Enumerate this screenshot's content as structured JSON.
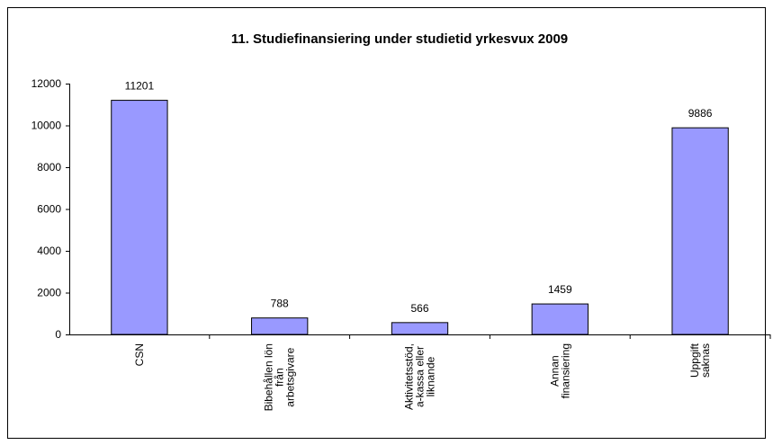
{
  "chart_data": {
    "type": "bar",
    "title": "11. Studiefinansiering under studietid yrkesvux 2009",
    "categories": [
      [
        "CSN"
      ],
      [
        "Bibehållen lön",
        "från",
        "arbetsgivare"
      ],
      [
        "Aktivitetsstöd,",
        "a-kassa eller",
        "liknande"
      ],
      [
        "Annan",
        "finansiering"
      ],
      [
        "Uppgift",
        "saknas"
      ]
    ],
    "values": [
      11201,
      788,
      566,
      1459,
      9886
    ],
    "color": "#9999ff",
    "ylim": [
      0,
      12000
    ],
    "yticks": [
      0,
      2000,
      4000,
      6000,
      8000,
      10000,
      12000
    ],
    "grid": false
  }
}
